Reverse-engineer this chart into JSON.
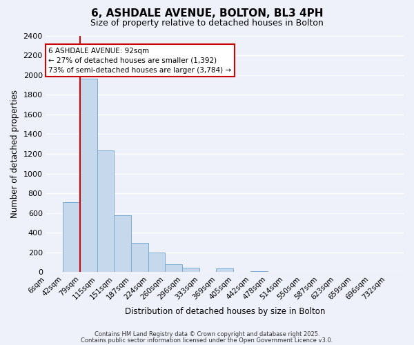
{
  "title": "6, ASHDALE AVENUE, BOLTON, BL3 4PH",
  "subtitle": "Size of property relative to detached houses in Bolton",
  "xlabel": "Distribution of detached houses by size in Bolton",
  "ylabel": "Number of detached properties",
  "bar_color": "#c6d9ec",
  "bar_edge_color": "#7aadd4",
  "background_color": "#eef1fa",
  "grid_color": "#ffffff",
  "bin_labels": [
    "6sqm",
    "42sqm",
    "79sqm",
    "115sqm",
    "151sqm",
    "187sqm",
    "224sqm",
    "260sqm",
    "296sqm",
    "333sqm",
    "369sqm",
    "405sqm",
    "442sqm",
    "478sqm",
    "514sqm",
    "550sqm",
    "587sqm",
    "623sqm",
    "659sqm",
    "696sqm",
    "732sqm"
  ],
  "bar_heights": [
    0,
    710,
    1960,
    1235,
    575,
    300,
    200,
    80,
    45,
    0,
    35,
    0,
    10,
    0,
    0,
    0,
    0,
    0,
    0,
    0,
    0
  ],
  "ylim": [
    0,
    2400
  ],
  "yticks": [
    0,
    200,
    400,
    600,
    800,
    1000,
    1200,
    1400,
    1600,
    1800,
    2000,
    2200,
    2400
  ],
  "vline_x": 2.0,
  "vline_color": "#dd0000",
  "annotation_title": "6 ASHDALE AVENUE: 92sqm",
  "annotation_line1": "← 27% of detached houses are smaller (1,392)",
  "annotation_line2": "73% of semi-detached houses are larger (3,784) →",
  "annotation_box_color": "#ffffff",
  "annotation_box_edge": "#cc0000",
  "footer1": "Contains HM Land Registry data © Crown copyright and database right 2025.",
  "footer2": "Contains public sector information licensed under the Open Government Licence v3.0."
}
